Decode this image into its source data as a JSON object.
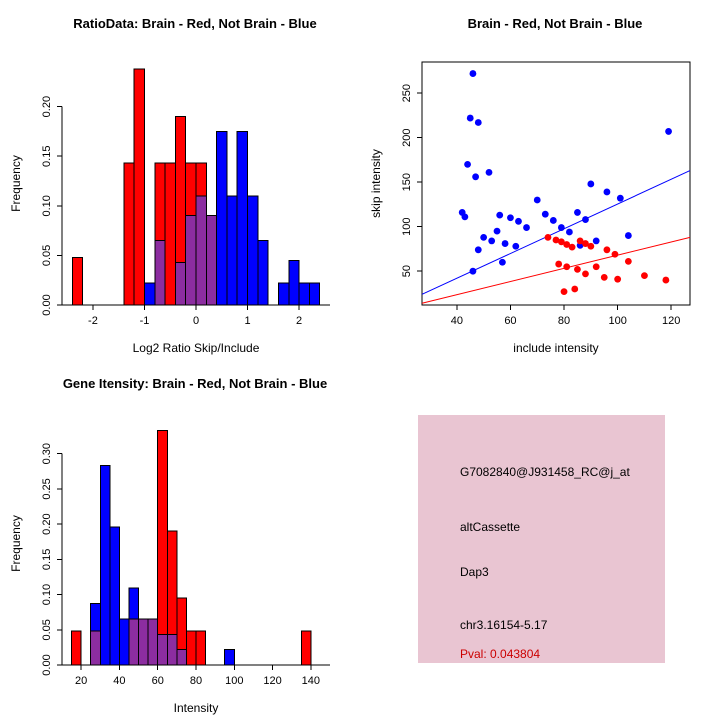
{
  "figure": {
    "background": "#ffffff"
  },
  "colors": {
    "brain": "#ff0000",
    "not_brain": "#0000ff",
    "overlap": "#8c2da0",
    "axis": "#000000"
  },
  "chart_data": [
    {
      "id": "ratio-histogram",
      "type": "bar",
      "title": "RatioData: Brain - Red, Not Brain - Blue",
      "xlabel": "Log2 Ratio Skip/Include",
      "ylabel": "Frequency",
      "xlim": [
        -2.6,
        2.6
      ],
      "ylim": [
        0,
        0.245
      ],
      "xticks": [
        -2,
        -1,
        0,
        1,
        2
      ],
      "xtick_labels": [
        "-2",
        "-1",
        "0",
        "1",
        "2"
      ],
      "yticks": [
        0,
        0.05,
        0.1,
        0.15,
        0.2
      ],
      "ytick_labels": [
        "0.00",
        "0.05",
        "0.10",
        "0.15",
        "0.20"
      ],
      "bin_width": 0.2,
      "series": [
        {
          "name": "Brain",
          "color_key": "brain",
          "bins": [
            [
              -2.4,
              0.048
            ],
            [
              -1.4,
              0.143
            ],
            [
              -1.2,
              0.238
            ],
            [
              -0.8,
              0.143
            ],
            [
              -0.6,
              0.143
            ],
            [
              -0.4,
              0.19
            ],
            [
              -0.2,
              0.143
            ],
            [
              0,
              0.143
            ],
            [
              0.2,
              0.09
            ]
          ]
        },
        {
          "name": "Not Brain",
          "color_key": "not_brain",
          "bins": [
            [
              -1,
              0.022
            ],
            [
              -0.8,
              0.065
            ],
            [
              -0.4,
              0.043
            ],
            [
              -0.2,
              0.09
            ],
            [
              0,
              0.11
            ],
            [
              0.2,
              0.09
            ],
            [
              0.4,
              0.175
            ],
            [
              0.6,
              0.11
            ],
            [
              0.8,
              0.175
            ],
            [
              1,
              0.11
            ],
            [
              1.2,
              0.065
            ],
            [
              1.6,
              0.022
            ],
            [
              1.8,
              0.045
            ],
            [
              2,
              0.022
            ],
            [
              2.2,
              0.022
            ]
          ]
        }
      ]
    },
    {
      "id": "intensity-scatter",
      "type": "scatter",
      "title": "Brain - Red, Not Brain - Blue",
      "xlabel": "include intensity",
      "ylabel": "skip intensity",
      "xlim": [
        27,
        127
      ],
      "ylim": [
        12,
        285
      ],
      "xticks": [
        40,
        60,
        80,
        100,
        120
      ],
      "xtick_labels": [
        "40",
        "60",
        "80",
        "100",
        "120"
      ],
      "yticks": [
        50,
        100,
        150,
        200,
        250
      ],
      "ytick_labels": [
        "50",
        "100",
        "150",
        "200",
        "250"
      ],
      "series": [
        {
          "name": "Not Brain",
          "color_key": "not_brain",
          "points": [
            [
              46,
              272
            ],
            [
              45,
              222
            ],
            [
              48,
              217
            ],
            [
              44,
              170
            ],
            [
              52,
              161
            ],
            [
              47,
              156
            ],
            [
              42,
              116
            ],
            [
              43,
              111
            ],
            [
              56,
              113
            ],
            [
              60,
              110
            ],
            [
              63,
              106
            ],
            [
              66,
              99
            ],
            [
              55,
              95
            ],
            [
              50,
              88
            ],
            [
              53,
              84
            ],
            [
              58,
              81
            ],
            [
              62,
              78
            ],
            [
              48,
              74
            ],
            [
              57,
              60
            ],
            [
              46,
              50
            ],
            [
              70,
              130
            ],
            [
              73,
              114
            ],
            [
              76,
              107
            ],
            [
              79,
              99
            ],
            [
              82,
              94
            ],
            [
              85,
              116
            ],
            [
              88,
              108
            ],
            [
              90,
              148
            ],
            [
              96,
              139
            ],
            [
              101,
              132
            ],
            [
              104,
              90
            ],
            [
              119,
              207
            ],
            [
              86,
              79
            ],
            [
              92,
              84
            ]
          ]
        },
        {
          "name": "Brain",
          "color_key": "brain",
          "points": [
            [
              74,
              88
            ],
            [
              77,
              85
            ],
            [
              79,
              83
            ],
            [
              81,
              80
            ],
            [
              83,
              77
            ],
            [
              86,
              84
            ],
            [
              88,
              81
            ],
            [
              90,
              78
            ],
            [
              78,
              58
            ],
            [
              81,
              55
            ],
            [
              85,
              52
            ],
            [
              88,
              47
            ],
            [
              92,
              55
            ],
            [
              95,
              43
            ],
            [
              100,
              41
            ],
            [
              104,
              61
            ],
            [
              110,
              45
            ],
            [
              118,
              40
            ],
            [
              84,
              30
            ],
            [
              80,
              27
            ],
            [
              96,
              74
            ],
            [
              99,
              69
            ]
          ]
        }
      ],
      "lines": [
        {
          "name": "not-brain-fit",
          "color_key": "not_brain",
          "x1": 27,
          "y1": 24,
          "x2": 127,
          "y2": 163
        },
        {
          "name": "brain-fit",
          "color_key": "brain",
          "x1": 27,
          "y1": 14,
          "x2": 127,
          "y2": 88
        }
      ]
    },
    {
      "id": "gene-intensity-histogram",
      "type": "bar",
      "title": "Gene Itensity: Brain - Red, Not Brain - Blue",
      "xlabel": "Intensity",
      "ylabel": "Frequency",
      "xlim": [
        10,
        150
      ],
      "ylim": [
        0,
        0.345
      ],
      "xticks": [
        20,
        40,
        60,
        80,
        100,
        120,
        140
      ],
      "xtick_labels": [
        "20",
        "40",
        "60",
        "80",
        "100",
        "120",
        "140"
      ],
      "yticks": [
        0,
        0.05,
        0.1,
        0.15,
        0.2,
        0.25,
        0.3
      ],
      "ytick_labels": [
        "0.00",
        "0.05",
        "0.10",
        "0.15",
        "0.20",
        "0.25",
        "0.30"
      ],
      "bin_width": 5,
      "series": [
        {
          "name": "Brain",
          "color_key": "brain",
          "bins": [
            [
              15,
              0.048
            ],
            [
              25,
              0.048
            ],
            [
              45,
              0.065
            ],
            [
              50,
              0.065
            ],
            [
              55,
              0.065
            ],
            [
              60,
              0.333
            ],
            [
              65,
              0.19
            ],
            [
              70,
              0.095
            ],
            [
              75,
              0.048
            ],
            [
              80,
              0.048
            ],
            [
              135,
              0.048
            ]
          ]
        },
        {
          "name": "Not Brain",
          "color_key": "not_brain",
          "bins": [
            [
              25,
              0.087
            ],
            [
              30,
              0.283
            ],
            [
              35,
              0.196
            ],
            [
              40,
              0.065
            ],
            [
              45,
              0.109
            ],
            [
              50,
              0.065
            ],
            [
              55,
              0.065
            ],
            [
              60,
              0.043
            ],
            [
              65,
              0.043
            ],
            [
              70,
              0.022
            ],
            [
              95,
              0.022
            ]
          ]
        }
      ]
    }
  ],
  "info_panel": {
    "background": "#e9c5d2",
    "lines": [
      {
        "text": "G7082840@J931458_RC@j_at",
        "color": "#000000"
      },
      {
        "text": "altCassette",
        "color": "#000000"
      },
      {
        "text": "Dap3",
        "color": "#000000"
      },
      {
        "text": "chr3.16154-5.17",
        "color": "#000000"
      },
      {
        "text": "Pval: 0.043804",
        "color": "#cc0000"
      }
    ]
  }
}
